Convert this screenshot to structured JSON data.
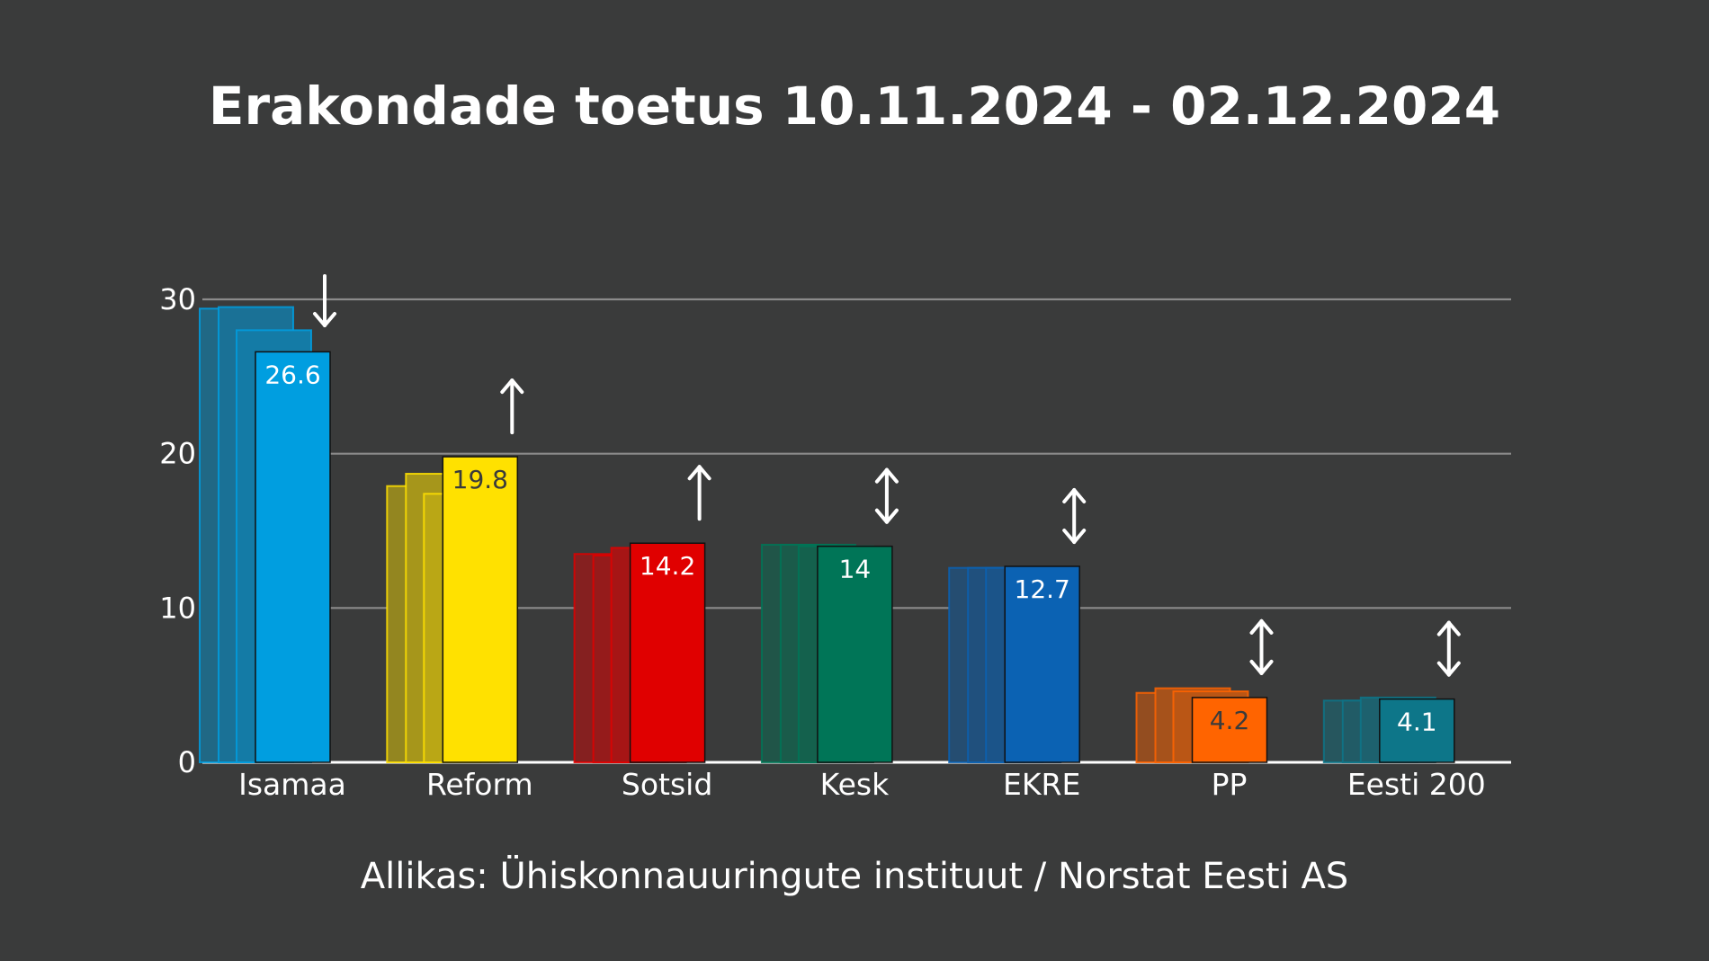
{
  "chart_data": {
    "type": "bar",
    "title": "Erakondade toetus 10.11.2024 - 02.12.2024",
    "source": "Allikas: Ühiskonnauuringute instituut / Norstat Eesti AS",
    "ylim": [
      0,
      30
    ],
    "yticks": [
      "0",
      "10",
      "20",
      "30"
    ],
    "grid": true,
    "categories": [
      "Isamaa",
      "Reform",
      "Sotsid",
      "Kesk",
      "EKRE",
      "PP",
      "Eesti 200"
    ],
    "series": [
      {
        "values": [
          29.4,
          17.9,
          13.5,
          14.1,
          12.6,
          4.5,
          4.0
        ]
      },
      {
        "values": [
          29.5,
          18.7,
          13.4,
          14.1,
          12.6,
          4.8,
          4.0
        ]
      },
      {
        "values": [
          28.0,
          17.4,
          13.9,
          14.0,
          12.6,
          4.6,
          4.2
        ]
      },
      {
        "values": [
          26.6,
          19.8,
          14.2,
          14.0,
          12.7,
          4.2,
          4.1
        ]
      }
    ],
    "value_labels": [
      "26.6",
      "19.8",
      "14.2",
      "14",
      "12.7",
      "4.2",
      "4.1"
    ],
    "trend": [
      "down",
      "up",
      "up",
      "both",
      "both",
      "both",
      "both"
    ],
    "colors": [
      "#009ee0",
      "#ffe100",
      "#e00000",
      "#007557",
      "#0b62b3",
      "#ff6400",
      "#0d7689"
    ],
    "label_colors": [
      "#ffffff",
      "#3a3b3b",
      "#ffffff",
      "#ffffff",
      "#ffffff",
      "#3a3b3b",
      "#ffffff"
    ]
  }
}
